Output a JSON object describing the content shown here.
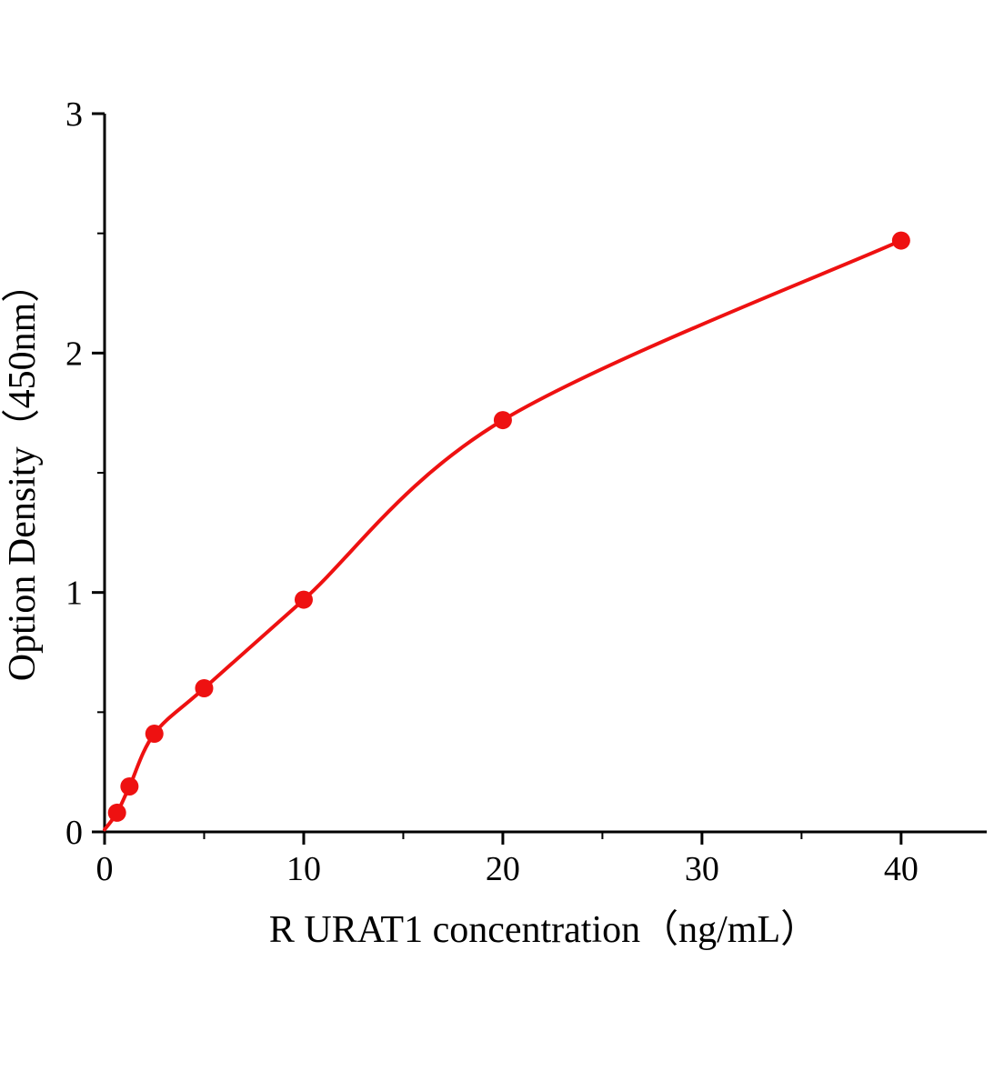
{
  "chart_data": {
    "type": "scatter",
    "title": "",
    "xlabel": "R URAT1 concentration（ng/mL）",
    "ylabel": "Option Density（450nm）",
    "x": [
      0.625,
      1.25,
      2.5,
      5,
      10,
      20,
      40
    ],
    "y": [
      0.08,
      0.19,
      0.41,
      0.6,
      0.97,
      1.72,
      2.47
    ],
    "curve_start": [
      0,
      0.01
    ],
    "xlim": [
      0,
      44.3
    ],
    "ylim": [
      0,
      3
    ],
    "x_major_ticks": [
      0,
      10,
      20,
      30,
      40
    ],
    "x_minor_ticks": [
      5,
      15,
      25,
      35
    ],
    "y_major_ticks": [
      0,
      1,
      2,
      3
    ],
    "y_minor_ticks": [
      0.5,
      1.5,
      2.5
    ],
    "marker_color": "#ee1111",
    "line_color": "#ee1111",
    "axis_color": "#000000",
    "grid": false,
    "legend": null
  }
}
